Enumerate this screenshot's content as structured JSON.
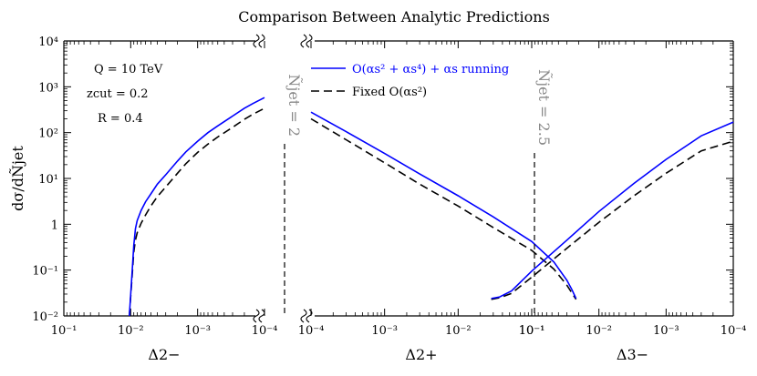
{
  "chart_data": {
    "type": "line",
    "title": "Comparison Between Analytic Predictions",
    "ylabel": "dσ/dÑjet",
    "yscale": "log",
    "ylim": [
      0.01,
      10000
    ],
    "y_tick_exponents": [
      -2,
      -1,
      0,
      1,
      2,
      3,
      4
    ],
    "y_tick_labels": [
      "10⁻²",
      "10⁻¹",
      "1",
      "10¹",
      "10²",
      "10³",
      "10⁴"
    ],
    "annotations": {
      "Q": "Q = 10 TeV",
      "zcut": "zcut = 0.2",
      "R": "R = 0.4"
    },
    "vlines": [
      {
        "label": "Ñjet = 2",
        "color": "#888888"
      },
      {
        "label": "Ñjet = 2.5",
        "color": "#888888"
      }
    ],
    "legend": [
      {
        "label": "O(αs² + αs⁴) + αs running",
        "color": "#0000ff",
        "style": "solid"
      },
      {
        "label": "Fixed O(αs²)",
        "color": "#000000",
        "style": "dashed"
      }
    ],
    "panels": [
      {
        "xlabel": "Δ2−",
        "x_tick_exponents": [
          -1,
          -2,
          -3,
          -4
        ],
        "x_tick_labels": [
          "10⁻¹",
          "10⁻²",
          "10⁻³",
          "10⁻⁴"
        ],
        "xdir": "decreasing",
        "series": [
          {
            "name": "O(αs² + αs⁴) + αs running",
            "x": [
              0.0105,
              0.0095,
              0.009,
              0.0085,
              0.008,
              0.007,
              0.006,
              0.005,
              0.004,
              0.003,
              0.002,
              0.0015,
              0.001,
              0.0007,
              0.0005,
              0.0003,
              0.0002,
              0.00015,
              0.0001
            ],
            "y": [
              0.01,
              0.1,
              0.35,
              0.8,
              1.2,
              2.0,
              3.1,
              4.6,
              7.5,
              12,
              24,
              38,
              65,
              100,
              140,
              230,
              340,
              430,
              580
            ]
          },
          {
            "name": "Fixed O(αs²)",
            "x": [
              0.0105,
              0.0095,
              0.009,
              0.0085,
              0.008,
              0.007,
              0.006,
              0.005,
              0.004,
              0.003,
              0.002,
              0.0015,
              0.001,
              0.0007,
              0.0005,
              0.0003,
              0.0002,
              0.00015,
              0.0001
            ],
            "y": [
              0.01,
              0.08,
              0.25,
              0.45,
              0.65,
              1.05,
              1.6,
              2.5,
              4.0,
              6.5,
              13,
              21,
              37,
              56,
              80,
              130,
              195,
              250,
              340
            ]
          }
        ]
      },
      {
        "xlabel": "Δ2+",
        "x_tick_exponents": [
          -4,
          -3,
          -2,
          -1
        ],
        "x_tick_labels": [
          "10⁻⁴",
          "10⁻³",
          "10⁻²",
          "10⁻¹"
        ],
        "xdir": "increasing",
        "series": [
          {
            "name": "O(αs² + αs⁴) + αs running",
            "x": [
              0.0001,
              0.0003,
              0.001,
              0.003,
              0.01,
              0.03,
              0.1,
              0.2,
              0.3,
              0.35,
              0.4
            ],
            "y": [
              280,
              105,
              35,
              12.5,
              4.2,
              1.45,
              0.42,
              0.15,
              0.06,
              0.038,
              0.024
            ]
          },
          {
            "name": "Fixed O(αs²)",
            "x": [
              0.0001,
              0.0003,
              0.001,
              0.003,
              0.01,
              0.03,
              0.1,
              0.2,
              0.3,
              0.35,
              0.4
            ],
            "y": [
              200,
              70,
              22,
              7.5,
              2.5,
              0.85,
              0.27,
              0.105,
              0.047,
              0.032,
              0.023
            ]
          }
        ]
      },
      {
        "xlabel": "Δ3−",
        "x_tick_exponents": [
          -1,
          -2,
          -3,
          -4
        ],
        "x_tick_labels": [
          "10⁻¹",
          "10⁻²",
          "10⁻³",
          "10⁻⁴"
        ],
        "xdir": "decreasing",
        "series": [
          {
            "name": "O(αs² + αs⁴) + αs running",
            "x": [
              0.4,
              0.3,
              0.2,
              0.1,
              0.03,
              0.01,
              0.003,
              0.001,
              0.0003,
              0.0001
            ],
            "y": [
              0.024,
              0.026,
              0.035,
              0.095,
              0.45,
              1.9,
              7.8,
              26,
              85,
              170
            ]
          },
          {
            "name": "Fixed O(αs²)",
            "x": [
              0.4,
              0.3,
              0.2,
              0.1,
              0.03,
              0.01,
              0.003,
              0.001,
              0.0003,
              0.0001
            ],
            "y": [
              0.023,
              0.025,
              0.031,
              0.07,
              0.3,
              1.1,
              4.2,
              13,
              40,
              65
            ]
          }
        ]
      }
    ]
  }
}
